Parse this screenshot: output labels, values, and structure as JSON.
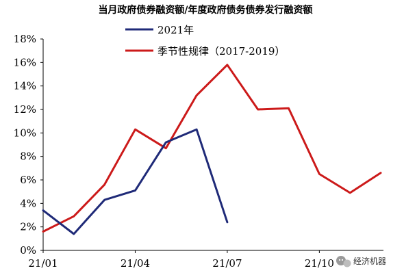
{
  "chart_data": {
    "type": "line",
    "title": "当月政府债券融资额/年度政府债务债券发行融资额",
    "categories": [
      "21/01",
      "21/02",
      "21/03",
      "21/04",
      "21/05",
      "21/06",
      "21/07",
      "21/08",
      "21/09",
      "21/10",
      "21/11",
      "21/12"
    ],
    "x_tick_labels": [
      "21/01",
      "21/04",
      "21/07",
      "21/10"
    ],
    "y_tick_labels": [
      "0%",
      "2%",
      "4%",
      "6%",
      "8%",
      "10%",
      "12%",
      "14%",
      "16%",
      "18%"
    ],
    "ylim": [
      0,
      18
    ],
    "y_unit": "%",
    "grid": false,
    "legend_position": "top-center",
    "series": [
      {
        "name": "2021年",
        "color": "#1f2a78",
        "values": [
          3.4,
          1.4,
          4.3,
          5.1,
          9.2,
          10.3,
          2.4,
          null,
          null,
          null,
          null,
          null
        ]
      },
      {
        "name": "季节性规律（2017-2019）",
        "color": "#cc1a1a",
        "values": [
          1.6,
          2.9,
          5.6,
          10.3,
          8.7,
          13.2,
          15.8,
          12.0,
          12.1,
          6.5,
          4.9,
          6.6
        ]
      }
    ]
  },
  "watermark": {
    "icon": "wechat-icon",
    "text": "经济机器"
  }
}
